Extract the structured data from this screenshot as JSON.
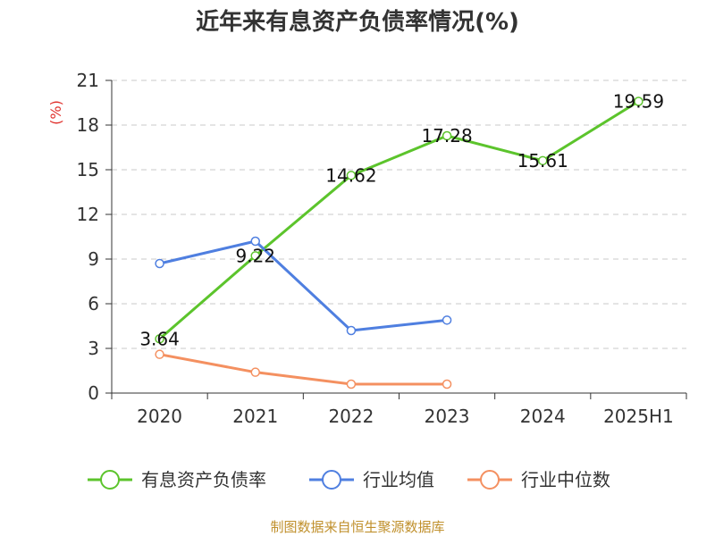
{
  "chart_data": {
    "type": "line",
    "title": "近年来有息资产负债率情况(%)",
    "ylabel": "(%)",
    "xlabel": "",
    "categories": [
      "2020",
      "2021",
      "2022",
      "2023",
      "2024",
      "2025H1"
    ],
    "ylim": [
      0,
      21
    ],
    "yticks": [
      0,
      3,
      6,
      9,
      12,
      15,
      18,
      21
    ],
    "grid": true,
    "legend_position": "bottom",
    "series": [
      {
        "name": "有息资产负债率",
        "color": "#5cc42c",
        "values": [
          3.64,
          9.22,
          14.62,
          17.28,
          15.61,
          19.59
        ],
        "labels": [
          "3.64",
          "9.22",
          "14.62",
          "17.28",
          "15.61",
          "19.59"
        ]
      },
      {
        "name": "行业均值",
        "color": "#4f7fe0",
        "values": [
          8.7,
          10.2,
          4.2,
          4.9,
          null,
          null
        ]
      },
      {
        "name": "行业中位数",
        "color": "#f49060",
        "values": [
          2.6,
          1.4,
          0.6,
          0.6,
          null,
          null
        ]
      }
    ],
    "source": "制图数据来自恒生聚源数据库"
  }
}
